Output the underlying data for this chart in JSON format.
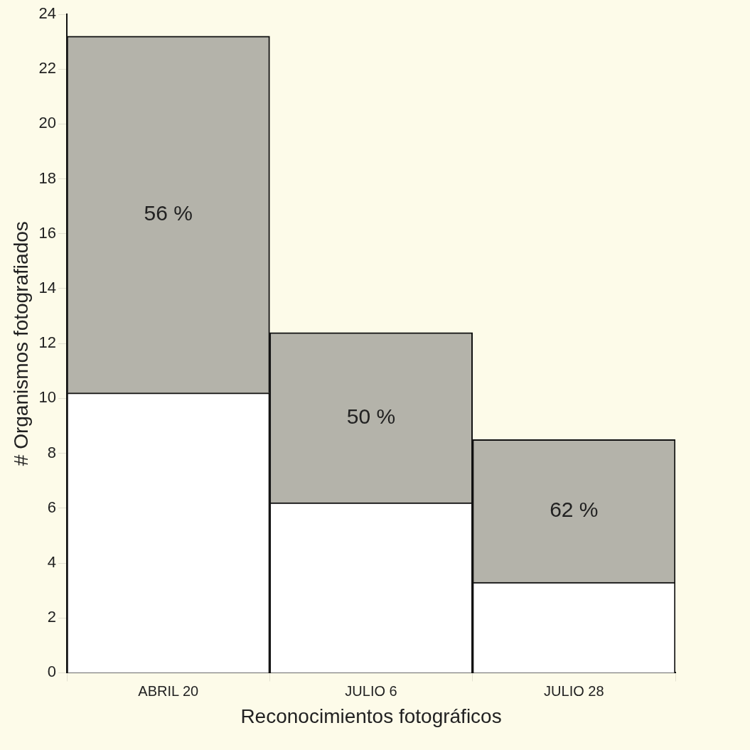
{
  "chart_data": {
    "type": "bar",
    "stacked": true,
    "xlabel": "Reconocimientos fotográficos",
    "ylabel": "# Organismos fotografiados",
    "categories": [
      "ABRIL 20",
      "JULIO 6",
      "JULIO 28"
    ],
    "series": [
      {
        "color": "#ffffff",
        "values": [
          10.2,
          6.2,
          3.3
        ]
      },
      {
        "color": "#b4b3aa",
        "values": [
          13,
          6.2,
          5.2
        ]
      }
    ],
    "ylim": [
      0,
      24
    ],
    "yticks": [
      0,
      2,
      4,
      6,
      8,
      10,
      12,
      14,
      16,
      18,
      20,
      22,
      24
    ],
    "annotations": [
      "56 %",
      "50 %",
      "62 %"
    ]
  }
}
